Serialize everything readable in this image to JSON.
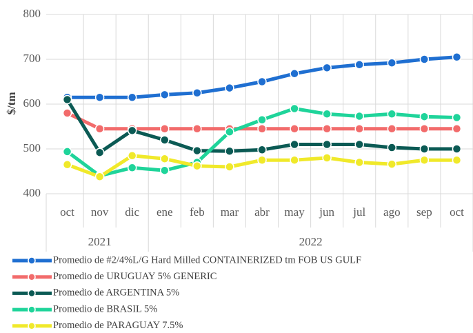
{
  "chart_data": {
    "type": "line",
    "y_label": "$/tm",
    "categories": [
      "oct",
      "nov",
      "dic",
      "ene",
      "feb",
      "mar",
      "abr",
      "may",
      "jun",
      "jul",
      "ago",
      "sep",
      "oct"
    ],
    "category_years": [
      "2021",
      "2021",
      "2021",
      "2022",
      "2022",
      "2022",
      "2022",
      "2022",
      "2022",
      "2022",
      "2022",
      "2022",
      "2022"
    ],
    "ylim": [
      400,
      800
    ],
    "yticks": [
      400,
      500,
      600,
      700,
      800
    ],
    "grid": true,
    "series": [
      {
        "name": "Promedio de #2/4%L/G Hard Milled CONTAINERIZED tm FOB US GULF",
        "color": "#1f6fd1",
        "values": [
          615,
          615,
          615,
          621,
          625,
          636,
          650,
          668,
          681,
          688,
          692,
          700,
          705
        ]
      },
      {
        "name": "Promedio de URUGUAY 5% GENERIC",
        "color": "#f26b6b",
        "values": [
          580,
          545,
          545,
          545,
          545,
          545,
          545,
          545,
          545,
          545,
          545,
          545,
          545
        ]
      },
      {
        "name": "Promedio de ARGENTINA 5%",
        "color": "#0b5a54",
        "values": [
          610,
          492,
          541,
          520,
          496,
          495,
          498,
          510,
          510,
          510,
          503,
          500,
          500
        ]
      },
      {
        "name": "Promedio de BRASIL 5%",
        "color": "#1fd49a",
        "values": [
          494,
          440,
          458,
          452,
          470,
          538,
          565,
          590,
          578,
          573,
          578,
          572,
          570
        ]
      },
      {
        "name": "Promedio de PARAGUAY 7.5%",
        "color": "#f0e92a",
        "values": [
          465,
          438,
          485,
          478,
          462,
          460,
          475,
          475,
          480,
          470,
          466,
          475,
          475
        ]
      }
    ]
  }
}
